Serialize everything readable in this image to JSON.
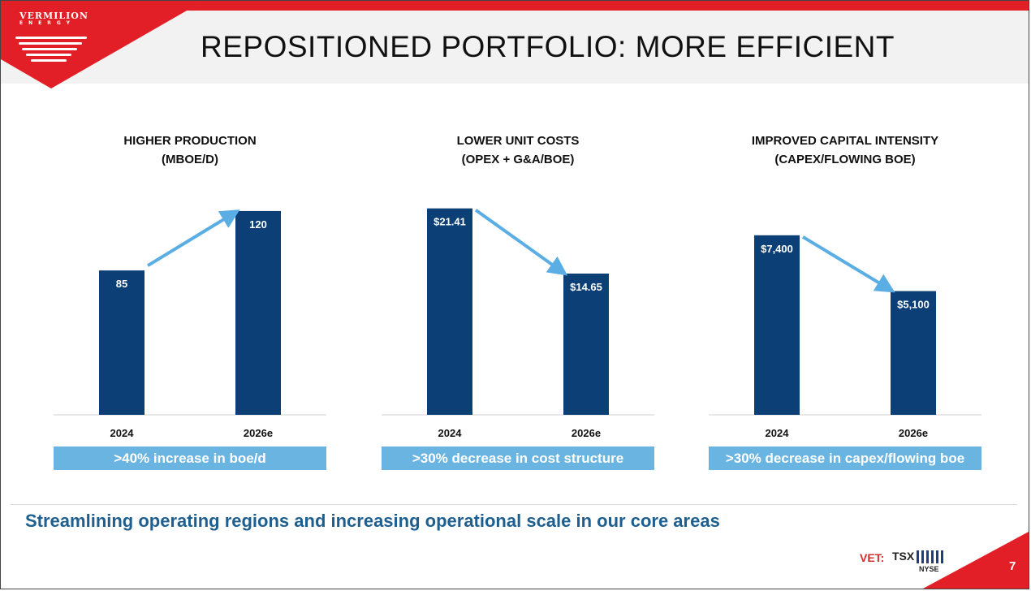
{
  "brand": {
    "name": "VERMILION",
    "sub": "ENERGY",
    "red": "#e21f26",
    "bar_color": "#0b3f75",
    "arrow_color": "#5aaee3",
    "caption_color": "#6ab4e2",
    "tagline_color": "#1f5f8f"
  },
  "page": {
    "title": "REPOSITIONED PORTFOLIO: MORE EFFICIENT",
    "tagline": "Streamlining operating regions and increasing operational scale in our core areas",
    "page_number": "7",
    "ticker": "VET:",
    "exchange_1": "TSX",
    "exchange_2": "NYSE"
  },
  "chart_data": [
    {
      "type": "bar",
      "title": [
        "HIGHER PRODUCTION",
        "(MBOE/D)"
      ],
      "categories": [
        "2024",
        "2026e"
      ],
      "values": [
        85,
        120
      ],
      "value_labels": [
        "85",
        "120"
      ],
      "ylim": [
        0,
        130
      ],
      "trend": "up",
      "caption": ">40% increase in boe/d"
    },
    {
      "type": "bar",
      "title": [
        "LOWER UNIT COSTS",
        "(OPEX + G&A/BOE)"
      ],
      "categories": [
        "2024",
        "2026e"
      ],
      "values": [
        21.41,
        14.65
      ],
      "value_labels": [
        "$21.41",
        "$14.65"
      ],
      "ylim": [
        0,
        22.9
      ],
      "trend": "down",
      "caption": ">30% decrease in cost structure"
    },
    {
      "type": "bar",
      "title": [
        "IMPROVED CAPITAL INTENSITY",
        "(CAPEX/FLOWING BOE)"
      ],
      "categories": [
        "2024",
        "2026e"
      ],
      "values": [
        7400,
        5100
      ],
      "value_labels": [
        "$7,400",
        "$5,100"
      ],
      "ylim": [
        0,
        9100
      ],
      "trend": "down",
      "caption": ">30% decrease in capex/flowing boe"
    }
  ]
}
